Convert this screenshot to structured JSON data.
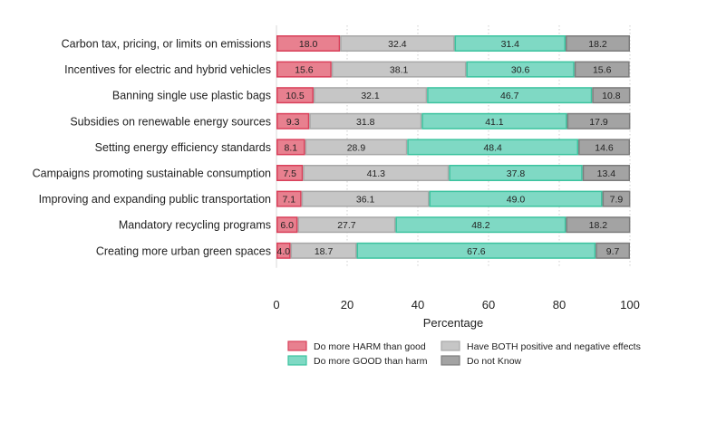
{
  "chart_data": {
    "type": "bar",
    "orientation": "horizontal",
    "stacked": true,
    "title": "",
    "xlabel": "Percentage",
    "ylabel": "",
    "xlim": [
      0,
      100
    ],
    "xticks": [
      0,
      20,
      40,
      60,
      80,
      100
    ],
    "grid": "vertical dotted",
    "legend_position": "bottom",
    "categories": [
      "Carbon tax, pricing, or limits on emissions",
      "Incentives for electric and hybrid vehicles",
      "Banning single use plastic bags",
      "Subsidies on renewable energy sources",
      "Setting energy efficiency standards",
      "Campaigns promoting sustainable consumption",
      "Improving and expanding public transportation",
      "Mandatory recycling programs",
      "Creating more urban green spaces"
    ],
    "series": [
      {
        "name": "Do more HARM than good",
        "color": "#e8808f",
        "edge": "#d9405a",
        "values": [
          18.0,
          15.6,
          10.5,
          9.3,
          8.1,
          7.5,
          7.1,
          6.0,
          4.0
        ]
      },
      {
        "name": "Have BOTH positive and negative effects",
        "color": "#c6c6c6",
        "edge": "#a8a8a8",
        "values": [
          32.4,
          38.1,
          32.1,
          31.8,
          28.9,
          41.3,
          36.1,
          27.7,
          18.7
        ]
      },
      {
        "name": "Do more GOOD than harm",
        "color": "#7fd9c4",
        "edge": "#3cc39f",
        "values": [
          31.4,
          30.6,
          46.7,
          41.1,
          48.4,
          37.8,
          49.0,
          48.2,
          67.6
        ]
      },
      {
        "name": "Do not Know",
        "color": "#a3a3a3",
        "edge": "#7d7d7d",
        "values": [
          18.2,
          15.6,
          10.8,
          17.9,
          14.6,
          13.4,
          7.9,
          18.2,
          9.7
        ]
      }
    ],
    "legend_order": [
      0,
      1,
      2,
      3
    ]
  }
}
